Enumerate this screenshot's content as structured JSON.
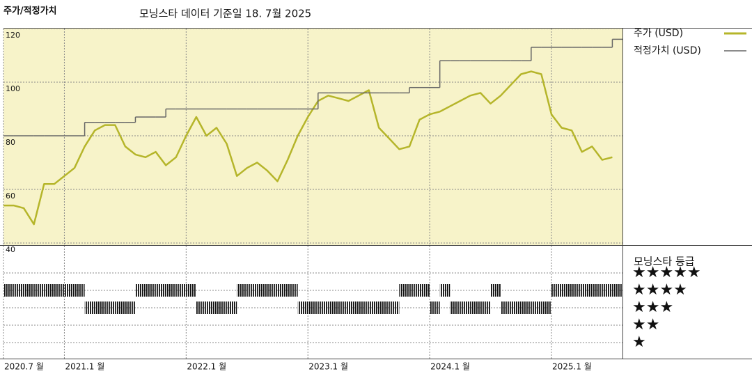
{
  "chart_data": {
    "type": "line",
    "title": "주가/적정가치",
    "subtitle": "모닝스타 데이터 기준일 18. 7월 2025",
    "x": [
      "2020-07",
      "2020-08",
      "2020-09",
      "2020-10",
      "2020-11",
      "2020-12",
      "2021-01",
      "2021-02",
      "2021-03",
      "2021-04",
      "2021-05",
      "2021-06",
      "2021-07",
      "2021-08",
      "2021-09",
      "2021-10",
      "2021-11",
      "2021-12",
      "2022-01",
      "2022-02",
      "2022-03",
      "2022-04",
      "2022-05",
      "2022-06",
      "2022-07",
      "2022-08",
      "2022-09",
      "2022-10",
      "2022-11",
      "2022-12",
      "2023-01",
      "2023-02",
      "2023-03",
      "2023-04",
      "2023-05",
      "2023-06",
      "2023-07",
      "2023-08",
      "2023-09",
      "2023-10",
      "2023-11",
      "2023-12",
      "2024-01",
      "2024-02",
      "2024-03",
      "2024-04",
      "2024-05",
      "2024-06",
      "2024-07",
      "2024-08",
      "2024-09",
      "2024-10",
      "2024-11",
      "2024-12",
      "2025-01",
      "2025-02",
      "2025-03",
      "2025-04",
      "2025-05",
      "2025-06",
      "2025-07"
    ],
    "xlim": [
      "2020-07",
      "2025-08"
    ],
    "xticks": [
      {
        "value": "2020-07",
        "label": "2020.7 월"
      },
      {
        "value": "2021-01",
        "label": "2021.1 월"
      },
      {
        "value": "2022-01",
        "label": "2022.1 월"
      },
      {
        "value": "2023-01",
        "label": "2023.1 월"
      },
      {
        "value": "2024-01",
        "label": "2024.1 월"
      },
      {
        "value": "2025-01",
        "label": "2025.1 월"
      }
    ],
    "ylim": [
      40,
      120
    ],
    "yticks": [
      40,
      60,
      80,
      100,
      120
    ],
    "grid": true,
    "series": [
      {
        "name": "주가 (USD)",
        "color": "#b5b52a",
        "values": [
          54,
          54,
          53,
          47,
          62,
          62,
          65,
          68,
          76,
          82,
          84,
          84,
          76,
          73,
          72,
          74,
          69,
          72,
          80,
          87,
          80,
          83,
          77,
          65,
          68,
          70,
          67,
          63,
          71,
          80,
          87,
          93,
          95,
          94,
          93,
          95,
          97,
          83,
          79,
          75,
          76,
          86,
          88,
          89,
          91,
          93,
          95,
          96,
          92,
          95,
          99,
          103,
          104,
          103,
          88,
          83,
          82,
          74,
          76,
          71,
          72
        ]
      },
      {
        "name": "적정가치 (USD)",
        "color": "#666666",
        "step": true,
        "values": [
          80,
          80,
          80,
          80,
          80,
          80,
          80,
          80,
          85,
          85,
          85,
          85,
          85,
          87,
          87,
          87,
          90,
          90,
          90,
          90,
          90,
          90,
          90,
          90,
          90,
          90,
          90,
          90,
          90,
          90,
          90,
          96,
          96,
          96,
          96,
          96,
          96,
          96,
          96,
          96,
          98,
          98,
          98,
          108,
          108,
          108,
          108,
          108,
          108,
          108,
          108,
          108,
          113,
          113,
          113,
          113,
          113,
          113,
          113,
          113,
          116
        ]
      }
    ],
    "ratings": {
      "title": "모닝스타 등급",
      "levels": [
        {
          "value": 5,
          "label": "★★★★★"
        },
        {
          "value": 4,
          "label": "★★★★"
        },
        {
          "value": 3,
          "label": "★★★"
        },
        {
          "value": 2,
          "label": "★★"
        },
        {
          "value": 1,
          "label": "★"
        }
      ],
      "values": [
        4,
        4,
        4,
        4,
        4,
        4,
        4,
        4,
        3,
        3,
        3,
        3,
        3,
        4,
        4,
        4,
        4,
        4,
        4,
        3,
        3,
        3,
        3,
        4,
        4,
        4,
        4,
        4,
        4,
        3,
        3,
        3,
        3,
        3,
        3,
        3,
        3,
        3,
        3,
        4,
        4,
        4,
        3,
        4,
        3,
        3,
        3,
        3,
        4,
        3,
        3,
        3,
        3,
        3,
        4,
        4,
        4,
        4,
        4,
        4,
        4
      ]
    }
  }
}
